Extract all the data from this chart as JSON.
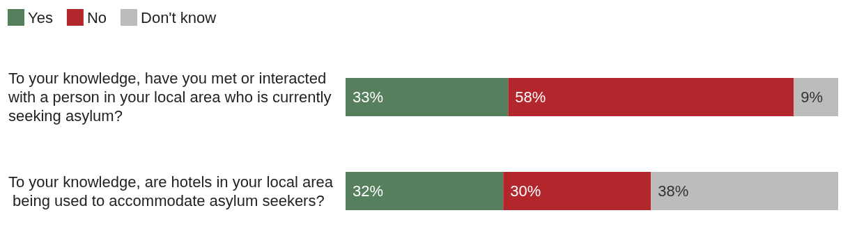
{
  "chart_data": {
    "type": "bar",
    "orientation": "horizontal",
    "stacked": true,
    "legend": "top left",
    "categories": [
      "To your knowledge, have you met or interacted with a person in your local area who is currently seeking asylum?",
      "To your knowledge, are hotels in your local area being used to accommodate asylum seekers?"
    ],
    "series": [
      {
        "name": "Yes",
        "color": "#567f5e",
        "values": [
          33,
          32
        ],
        "value_labels": [
          "33%",
          "32%"
        ]
      },
      {
        "name": "No",
        "color": "#b3262b",
        "values": [
          58,
          30
        ],
        "value_labels": [
          "58%",
          "30%"
        ]
      },
      {
        "name": "Don't know",
        "color": "#bcbcbc",
        "values": [
          9,
          38
        ],
        "value_labels": [
          "9%",
          "38%"
        ]
      }
    ]
  }
}
